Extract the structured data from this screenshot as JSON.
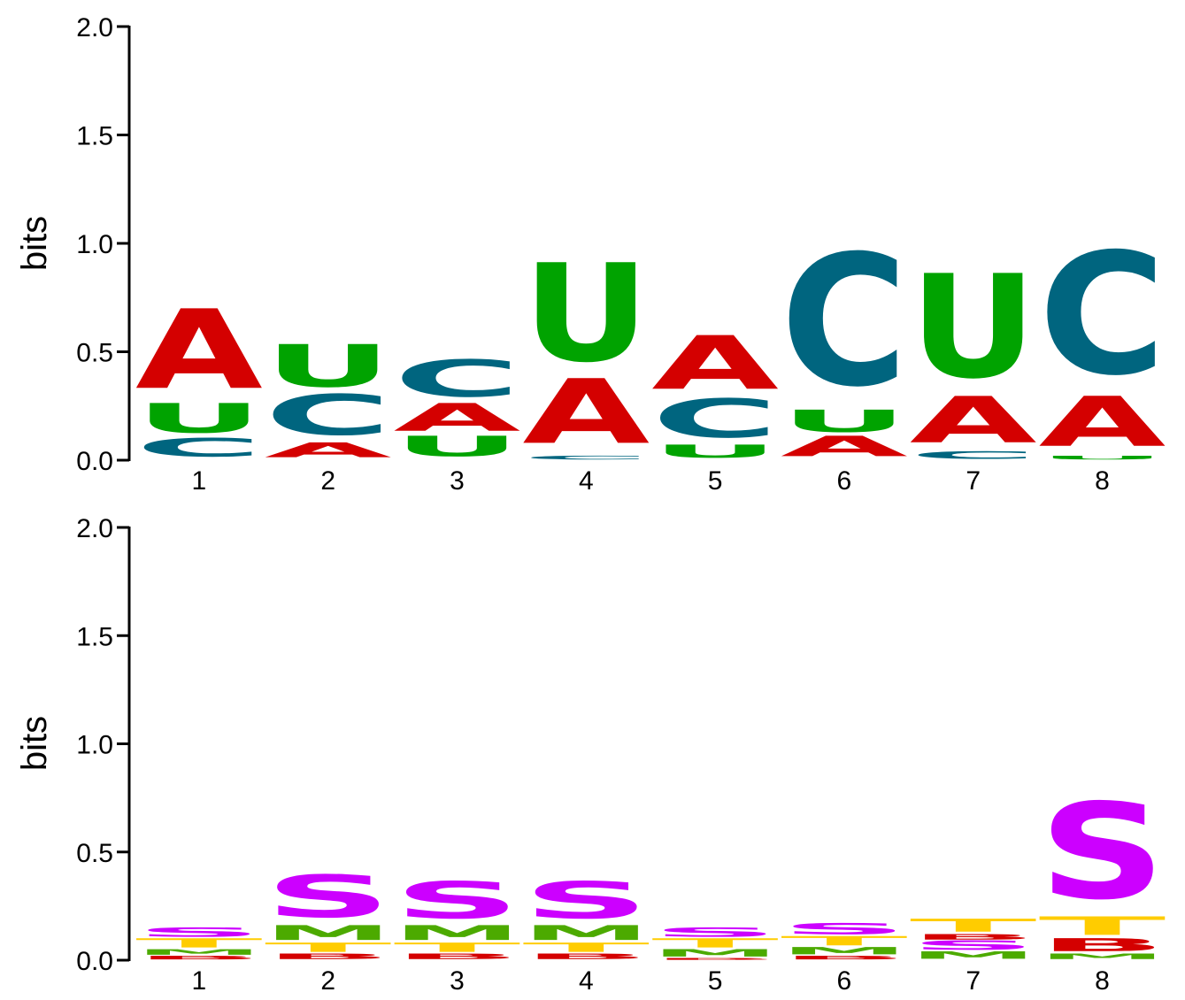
{
  "colors": {
    "A": "#d40000",
    "C": "#00657f",
    "U": "#00a300",
    "S": "#cc00ff",
    "M": "#4caa00",
    "T": "#ffcc00",
    "B": "#d40000"
  },
  "chart_data": [
    {
      "type": "sequence-logo",
      "ylabel": "bits",
      "ylim": [
        0,
        2
      ],
      "yticks": [
        "0.0",
        "0.5",
        "1.0",
        "1.5",
        "2.0"
      ],
      "positions": [
        "1",
        "2",
        "3",
        "4",
        "5",
        "6",
        "7",
        "8"
      ],
      "stacks": [
        [
          {
            "letter": "C",
            "bits": 0.1
          },
          {
            "letter": "U",
            "bits": 0.16
          },
          {
            "letter": "A",
            "bits": 0.43
          }
        ],
        [
          {
            "letter": "A",
            "bits": 0.08
          },
          {
            "letter": "C",
            "bits": 0.22
          },
          {
            "letter": "U",
            "bits": 0.23
          }
        ],
        [
          {
            "letter": "U",
            "bits": 0.11
          },
          {
            "letter": "A",
            "bits": 0.15
          },
          {
            "letter": "C",
            "bits": 0.2
          }
        ],
        [
          {
            "letter": "C",
            "bits": 0.02
          },
          {
            "letter": "A",
            "bits": 0.35
          },
          {
            "letter": "U",
            "bits": 0.53
          }
        ],
        [
          {
            "letter": "U",
            "bits": 0.07
          },
          {
            "letter": "C",
            "bits": 0.21
          },
          {
            "letter": "A",
            "bits": 0.29
          }
        ],
        [
          {
            "letter": "A",
            "bits": 0.11
          },
          {
            "letter": "U",
            "bits": 0.12
          },
          {
            "letter": "C",
            "bits": 0.71
          }
        ],
        [
          {
            "letter": "C",
            "bits": 0.04
          },
          {
            "letter": "A",
            "bits": 0.25
          },
          {
            "letter": "U",
            "bits": 0.56
          }
        ],
        [
          {
            "letter": "U",
            "bits": 0.02
          },
          {
            "letter": "A",
            "bits": 0.27
          },
          {
            "letter": "C",
            "bits": 0.66
          }
        ]
      ]
    },
    {
      "type": "sequence-logo",
      "ylabel": "bits",
      "ylim": [
        0,
        2
      ],
      "yticks": [
        "0.0",
        "0.5",
        "1.0",
        "1.5",
        "2.0"
      ],
      "positions": [
        "1",
        "2",
        "3",
        "4",
        "5",
        "6",
        "7",
        "8"
      ],
      "stacks": [
        [
          {
            "letter": "B",
            "bits": 0.02
          },
          {
            "letter": "M",
            "bits": 0.03
          },
          {
            "letter": "T",
            "bits": 0.05
          },
          {
            "letter": "S",
            "bits": 0.05
          }
        ],
        [
          {
            "letter": "B",
            "bits": 0.03
          },
          {
            "letter": "T",
            "bits": 0.05
          },
          {
            "letter": "M",
            "bits": 0.08
          },
          {
            "letter": "S",
            "bits": 0.23
          }
        ],
        [
          {
            "letter": "B",
            "bits": 0.03
          },
          {
            "letter": "T",
            "bits": 0.05
          },
          {
            "letter": "M",
            "bits": 0.08
          },
          {
            "letter": "S",
            "bits": 0.2
          }
        ],
        [
          {
            "letter": "B",
            "bits": 0.03
          },
          {
            "letter": "T",
            "bits": 0.05
          },
          {
            "letter": "M",
            "bits": 0.08
          },
          {
            "letter": "S",
            "bits": 0.2
          }
        ],
        [
          {
            "letter": "B",
            "bits": 0.01
          },
          {
            "letter": "M",
            "bits": 0.04
          },
          {
            "letter": "T",
            "bits": 0.05
          },
          {
            "letter": "S",
            "bits": 0.05
          }
        ],
        [
          {
            "letter": "B",
            "bits": 0.02
          },
          {
            "letter": "M",
            "bits": 0.04
          },
          {
            "letter": "T",
            "bits": 0.05
          },
          {
            "letter": "S",
            "bits": 0.06
          }
        ],
        [
          {
            "letter": "M",
            "bits": 0.04
          },
          {
            "letter": "S",
            "bits": 0.05
          },
          {
            "letter": "B",
            "bits": 0.03
          },
          {
            "letter": "T",
            "bits": 0.07
          }
        ],
        [
          {
            "letter": "M",
            "bits": 0.03
          },
          {
            "letter": "B",
            "bits": 0.07
          },
          {
            "letter": "T",
            "bits": 0.1
          },
          {
            "letter": "S",
            "bits": 0.52
          }
        ]
      ]
    }
  ]
}
